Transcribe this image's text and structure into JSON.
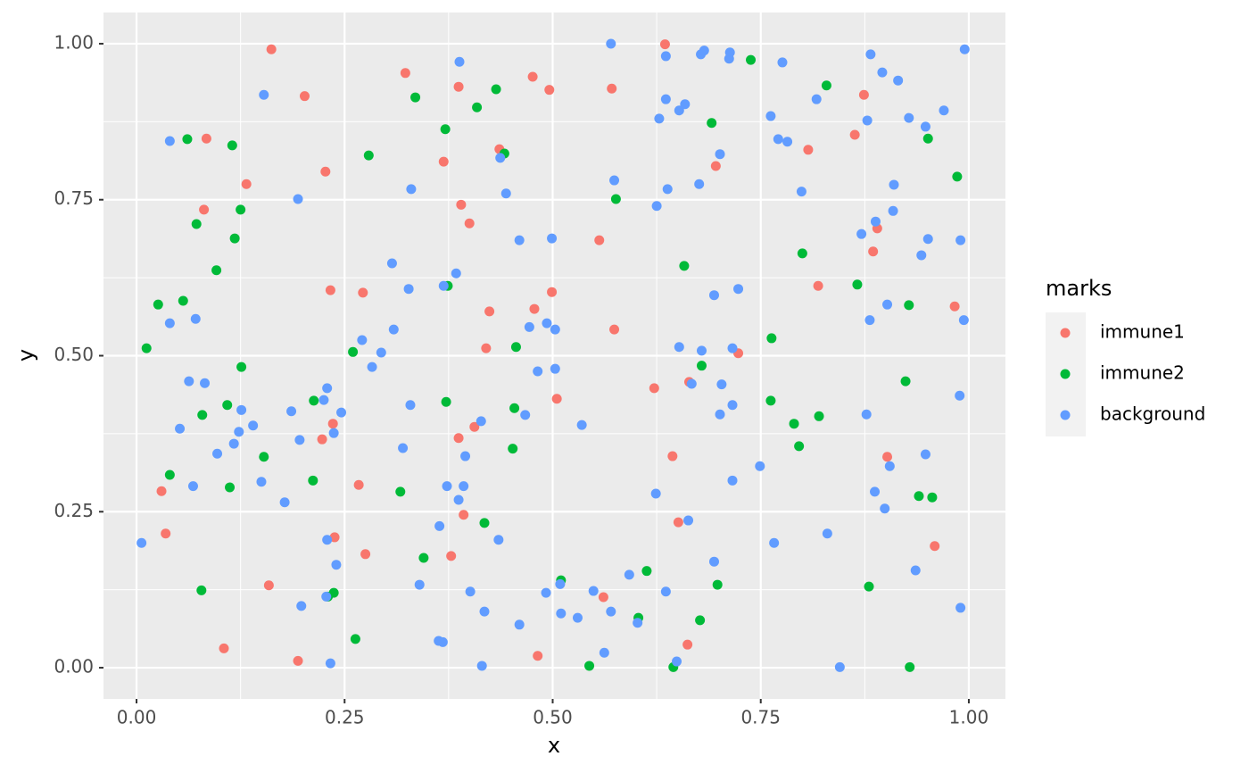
{
  "chart_data": {
    "type": "scatter",
    "x_label": "x",
    "y_label": "y",
    "legend_title": "marks",
    "legend": "right",
    "grid": true,
    "xlim": [
      -0.0397,
      1.044
    ],
    "ylim": [
      -0.05,
      1.05
    ],
    "xticks": [
      {
        "value": 0,
        "label": "0.00"
      },
      {
        "value": 0.25,
        "label": "0.25"
      },
      {
        "value": 0.5,
        "label": "0.50"
      },
      {
        "value": 0.75,
        "label": "0.75"
      },
      {
        "value": 1,
        "label": "1.00"
      }
    ],
    "yticks": [
      {
        "value": 0,
        "label": "0.00"
      },
      {
        "value": 0.25,
        "label": "0.25"
      },
      {
        "value": 0.5,
        "label": "0.50"
      },
      {
        "value": 0.75,
        "label": "0.75"
      },
      {
        "value": 1,
        "label": "1.00"
      }
    ],
    "series": [
      {
        "name": "immune1",
        "color": "#F8766D",
        "x": [
          0.162,
          0.323,
          0.202,
          0.387,
          0.476,
          0.496,
          0.571,
          0.635,
          0.084,
          0.132,
          0.081,
          0.227,
          0.369,
          0.436,
          0.39,
          0.4,
          0.556,
          0.696,
          0.807,
          0.863,
          0.874,
          0.233,
          0.272,
          0.424,
          0.478,
          0.499,
          0.574,
          0.42,
          0.819,
          0.89,
          0.885,
          0.983,
          0.723,
          0.664,
          0.622,
          0.505,
          0.236,
          0.223,
          0.387,
          0.406,
          0.644,
          0.902,
          0.03,
          0.267,
          0.035,
          0.238,
          0.393,
          0.651,
          0.275,
          0.378,
          0.959,
          0.159,
          0.561,
          0.105,
          0.194,
          0.482,
          0.662
        ],
        "values": [
          0.991,
          0.953,
          0.916,
          0.931,
          0.947,
          0.926,
          0.928,
          0.999,
          0.848,
          0.775,
          0.734,
          0.795,
          0.811,
          0.831,
          0.742,
          0.712,
          0.685,
          0.804,
          0.83,
          0.854,
          0.918,
          0.605,
          0.601,
          0.571,
          0.575,
          0.602,
          0.542,
          0.512,
          0.612,
          0.704,
          0.667,
          0.579,
          0.504,
          0.458,
          0.448,
          0.431,
          0.391,
          0.366,
          0.368,
          0.386,
          0.339,
          0.338,
          0.283,
          0.293,
          0.215,
          0.209,
          0.245,
          0.233,
          0.182,
          0.179,
          0.195,
          0.132,
          0.113,
          0.031,
          0.011,
          0.019,
          0.037
        ]
      },
      {
        "name": "immune2",
        "color": "#00BA38",
        "x": [
          0.335,
          0.432,
          0.409,
          0.738,
          0.829,
          0.371,
          0.442,
          0.691,
          0.061,
          0.115,
          0.279,
          0.951,
          0.986,
          0.576,
          0.072,
          0.125,
          0.118,
          0.096,
          0.8,
          0.658,
          0.026,
          0.056,
          0.866,
          0.928,
          0.374,
          0.012,
          0.126,
          0.26,
          0.456,
          0.763,
          0.679,
          0.924,
          0.372,
          0.213,
          0.109,
          0.079,
          0.454,
          0.762,
          0.79,
          0.82,
          0.796,
          0.452,
          0.153,
          0.04,
          0.212,
          0.112,
          0.317,
          0.94,
          0.956,
          0.418,
          0.345,
          0.613,
          0.51,
          0.698,
          0.88,
          0.078,
          0.237,
          0.23,
          0.603,
          0.677,
          0.263,
          0.544,
          0.645,
          0.929
        ],
        "values": [
          0.914,
          0.927,
          0.898,
          0.974,
          0.933,
          0.863,
          0.824,
          0.873,
          0.847,
          0.837,
          0.821,
          0.848,
          0.787,
          0.751,
          0.711,
          0.734,
          0.688,
          0.637,
          0.664,
          0.644,
          0.582,
          0.588,
          0.614,
          0.581,
          0.612,
          0.512,
          0.482,
          0.506,
          0.514,
          0.528,
          0.484,
          0.459,
          0.426,
          0.428,
          0.421,
          0.405,
          0.416,
          0.428,
          0.391,
          0.403,
          0.355,
          0.351,
          0.338,
          0.309,
          0.3,
          0.289,
          0.282,
          0.275,
          0.273,
          0.232,
          0.176,
          0.155,
          0.14,
          0.133,
          0.13,
          0.124,
          0.12,
          0.114,
          0.08,
          0.076,
          0.046,
          0.003,
          0.001,
          0.001
        ]
      },
      {
        "name": "background",
        "color": "#619CFF",
        "x": [
          0.57,
          0.636,
          0.678,
          0.682,
          0.713,
          0.712,
          0.776,
          0.882,
          0.896,
          0.915,
          0.995,
          0.97,
          0.153,
          0.388,
          0.636,
          0.628,
          0.659,
          0.652,
          0.817,
          0.762,
          0.771,
          0.782,
          0.878,
          0.928,
          0.948,
          0.04,
          0.437,
          0.701,
          0.574,
          0.444,
          0.638,
          0.676,
          0.799,
          0.91,
          0.33,
          0.194,
          0.625,
          0.909,
          0.888,
          0.871,
          0.951,
          0.99,
          0.46,
          0.499,
          0.943,
          0.307,
          0.384,
          0.327,
          0.369,
          0.723,
          0.694,
          0.902,
          0.994,
          0.881,
          0.071,
          0.04,
          0.493,
          0.472,
          0.503,
          0.309,
          0.271,
          0.294,
          0.283,
          0.652,
          0.679,
          0.716,
          0.482,
          0.503,
          0.063,
          0.082,
          0.667,
          0.703,
          0.989,
          0.229,
          0.329,
          0.126,
          0.246,
          0.186,
          0.225,
          0.467,
          0.414,
          0.535,
          0.716,
          0.701,
          0.877,
          0.14,
          0.052,
          0.123,
          0.237,
          0.196,
          0.117,
          0.32,
          0.097,
          0.395,
          0.905,
          0.749,
          0.948,
          0.15,
          0.716,
          0.068,
          0.373,
          0.393,
          0.624,
          0.887,
          0.387,
          0.178,
          0.899,
          0.663,
          0.364,
          0.83,
          0.006,
          0.229,
          0.435,
          0.766,
          0.24,
          0.694,
          0.936,
          0.592,
          0.34,
          0.509,
          0.636,
          0.492,
          0.549,
          0.401,
          0.228,
          0.198,
          0.99,
          0.418,
          0.57,
          0.51,
          0.53,
          0.602,
          0.46,
          0.363,
          0.368,
          0.562,
          0.649,
          0.233,
          0.415,
          0.845
        ],
        "values": [
          1.0,
          0.98,
          0.983,
          0.989,
          0.986,
          0.976,
          0.97,
          0.983,
          0.954,
          0.941,
          0.991,
          0.893,
          0.918,
          0.971,
          0.911,
          0.88,
          0.903,
          0.893,
          0.911,
          0.884,
          0.847,
          0.843,
          0.877,
          0.881,
          0.867,
          0.844,
          0.817,
          0.823,
          0.781,
          0.76,
          0.767,
          0.775,
          0.763,
          0.774,
          0.767,
          0.751,
          0.74,
          0.732,
          0.715,
          0.695,
          0.687,
          0.685,
          0.685,
          0.688,
          0.661,
          0.648,
          0.632,
          0.607,
          0.612,
          0.607,
          0.597,
          0.582,
          0.557,
          0.557,
          0.559,
          0.552,
          0.552,
          0.546,
          0.542,
          0.542,
          0.525,
          0.505,
          0.482,
          0.514,
          0.508,
          0.512,
          0.475,
          0.479,
          0.459,
          0.456,
          0.455,
          0.454,
          0.436,
          0.448,
          0.421,
          0.413,
          0.409,
          0.411,
          0.429,
          0.405,
          0.395,
          0.389,
          0.421,
          0.406,
          0.406,
          0.388,
          0.383,
          0.378,
          0.376,
          0.365,
          0.359,
          0.352,
          0.343,
          0.339,
          0.323,
          0.323,
          0.342,
          0.298,
          0.3,
          0.291,
          0.291,
          0.291,
          0.279,
          0.282,
          0.269,
          0.265,
          0.255,
          0.236,
          0.227,
          0.215,
          0.2,
          0.205,
          0.205,
          0.2,
          0.165,
          0.17,
          0.156,
          0.149,
          0.133,
          0.134,
          0.122,
          0.12,
          0.123,
          0.122,
          0.114,
          0.099,
          0.096,
          0.09,
          0.09,
          0.087,
          0.08,
          0.072,
          0.069,
          0.043,
          0.041,
          0.024,
          0.01,
          0.007,
          0.003,
          0.001
        ]
      }
    ]
  }
}
